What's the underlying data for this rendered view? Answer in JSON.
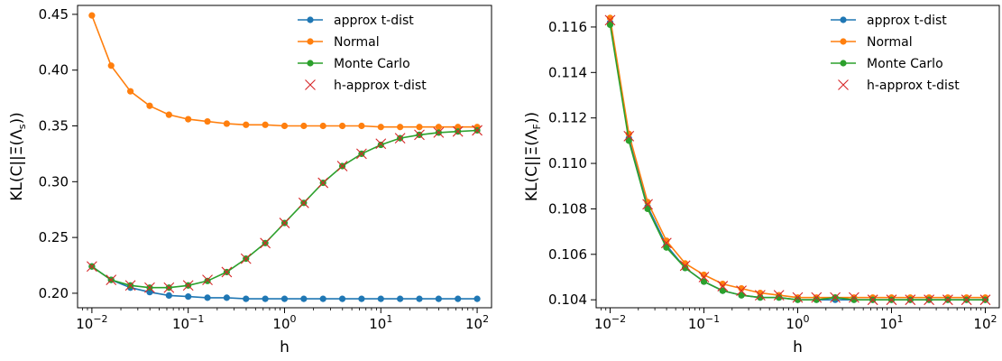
{
  "chart_data": [
    {
      "type": "line",
      "xlabel": "h",
      "ylabel": "KL(C||Ξ(Λ",
      "ylabel_sub": "s",
      "ylabel_end": "))",
      "xscale": "log",
      "xlim": [
        0.0071,
        141
      ],
      "ylim": [
        0.187,
        0.458
      ],
      "xticks": [
        {
          "value": 0.01,
          "base": "10",
          "exp": "−2"
        },
        {
          "value": 0.1,
          "base": "10",
          "exp": "−1"
        },
        {
          "value": 1,
          "base": "10",
          "exp": "0"
        },
        {
          "value": 10,
          "base": "10",
          "exp": "1"
        },
        {
          "value": 100,
          "base": "10",
          "exp": "2"
        }
      ],
      "yticks": [
        {
          "value": 0.2,
          "label": "0.20"
        },
        {
          "value": 0.25,
          "label": "0.25"
        },
        {
          "value": 0.3,
          "label": "0.30"
        },
        {
          "value": 0.35,
          "label": "0.35"
        },
        {
          "value": 0.4,
          "label": "0.40"
        },
        {
          "value": 0.45,
          "label": "0.45"
        }
      ],
      "legend_position": "top-right",
      "x": [
        0.01,
        0.01585,
        0.02512,
        0.03981,
        0.0631,
        0.1,
        0.1585,
        0.2512,
        0.3981,
        0.631,
        1,
        1.585,
        2.512,
        3.981,
        6.31,
        10,
        15.85,
        25.12,
        39.81,
        63.1,
        100
      ],
      "series": [
        {
          "name": "approx t-dist",
          "color": "#1f77b4",
          "marker": "circle",
          "values": [
            0.224,
            0.212,
            0.205,
            0.201,
            0.198,
            0.197,
            0.196,
            0.196,
            0.195,
            0.195,
            0.195,
            0.195,
            0.195,
            0.195,
            0.195,
            0.195,
            0.195,
            0.195,
            0.195,
            0.195,
            0.195
          ]
        },
        {
          "name": "Normal",
          "color": "#ff7f0e",
          "marker": "circle",
          "values": [
            0.449,
            0.404,
            0.381,
            0.368,
            0.36,
            0.356,
            0.354,
            0.352,
            0.351,
            0.351,
            0.35,
            0.35,
            0.35,
            0.35,
            0.35,
            0.349,
            0.349,
            0.349,
            0.349,
            0.349,
            0.349
          ]
        },
        {
          "name": "Monte Carlo",
          "color": "#2ca02c",
          "marker": "circle",
          "values": [
            0.224,
            0.212,
            0.207,
            0.205,
            0.205,
            0.207,
            0.211,
            0.219,
            0.231,
            0.245,
            0.263,
            0.281,
            0.299,
            0.314,
            0.325,
            0.333,
            0.339,
            0.342,
            0.344,
            0.345,
            0.346
          ]
        },
        {
          "name": "h-approx t-dist",
          "color": "#d62728",
          "marker": "x",
          "values": [
            0.224,
            0.212,
            0.207,
            0.205,
            0.205,
            0.207,
            0.212,
            0.219,
            0.231,
            0.245,
            0.263,
            0.281,
            0.299,
            0.314,
            0.325,
            0.334,
            0.339,
            0.342,
            0.344,
            0.345,
            0.346
          ]
        }
      ]
    },
    {
      "type": "line",
      "xlabel": "h",
      "ylabel": "KL(C||Ξ(Λ",
      "ylabel_sub": "F",
      "ylabel_end": "))",
      "xscale": "log",
      "xlim": [
        0.0071,
        141
      ],
      "ylim": [
        0.10365,
        0.11695
      ],
      "xticks": [
        {
          "value": 0.01,
          "base": "10",
          "exp": "−2"
        },
        {
          "value": 0.1,
          "base": "10",
          "exp": "−1"
        },
        {
          "value": 1,
          "base": "10",
          "exp": "0"
        },
        {
          "value": 10,
          "base": "10",
          "exp": "1"
        },
        {
          "value": 100,
          "base": "10",
          "exp": "2"
        }
      ],
      "yticks": [
        {
          "value": 0.104,
          "label": "0.104"
        },
        {
          "value": 0.106,
          "label": "0.106"
        },
        {
          "value": 0.108,
          "label": "0.108"
        },
        {
          "value": 0.11,
          "label": "0.110"
        },
        {
          "value": 0.112,
          "label": "0.112"
        },
        {
          "value": 0.114,
          "label": "0.114"
        },
        {
          "value": 0.116,
          "label": "0.116"
        }
      ],
      "legend_position": "top-right",
      "x": [
        0.01,
        0.01585,
        0.02512,
        0.03981,
        0.0631,
        0.1,
        0.1585,
        0.2512,
        0.3981,
        0.631,
        1,
        1.585,
        2.512,
        3.981,
        6.31,
        10,
        15.85,
        25.12,
        39.81,
        63.1,
        100
      ],
      "series": [
        {
          "name": "approx t-dist",
          "color": "#1f77b4",
          "marker": "circle",
          "values": [
            0.1162,
            0.1111,
            0.1081,
            0.1064,
            0.1054,
            0.1048,
            0.1044,
            0.1042,
            0.1041,
            0.1041,
            0.104,
            0.104,
            0.104,
            0.104,
            0.104,
            0.104,
            0.104,
            0.104,
            0.104,
            0.104,
            0.104
          ]
        },
        {
          "name": "Normal",
          "color": "#ff7f0e",
          "marker": "circle",
          "values": [
            0.1164,
            0.1113,
            0.1083,
            0.1066,
            0.1056,
            0.1051,
            0.1047,
            0.1045,
            0.1043,
            0.1042,
            0.1041,
            0.1041,
            0.1041,
            0.1041,
            0.1041,
            0.1041,
            0.1041,
            0.1041,
            0.1041,
            0.1041,
            0.1041
          ]
        },
        {
          "name": "Monte Carlo",
          "color": "#2ca02c",
          "marker": "circle",
          "values": [
            0.1161,
            0.111,
            0.108,
            0.1063,
            0.1054,
            0.1048,
            0.1044,
            0.1042,
            0.1041,
            0.1041,
            0.104,
            0.104,
            0.1041,
            0.104,
            0.104,
            0.104,
            0.104,
            0.104,
            0.104,
            0.104,
            0.104
          ]
        },
        {
          "name": "h-approx t-dist",
          "color": "#d62728",
          "marker": "x",
          "values": [
            0.1163,
            0.1112,
            0.1082,
            0.1065,
            0.1055,
            0.105,
            0.1046,
            0.1044,
            0.1042,
            0.1042,
            0.1041,
            0.1041,
            0.1041,
            0.1041,
            0.104,
            0.104,
            0.104,
            0.104,
            0.104,
            0.104,
            0.104
          ]
        }
      ]
    }
  ]
}
